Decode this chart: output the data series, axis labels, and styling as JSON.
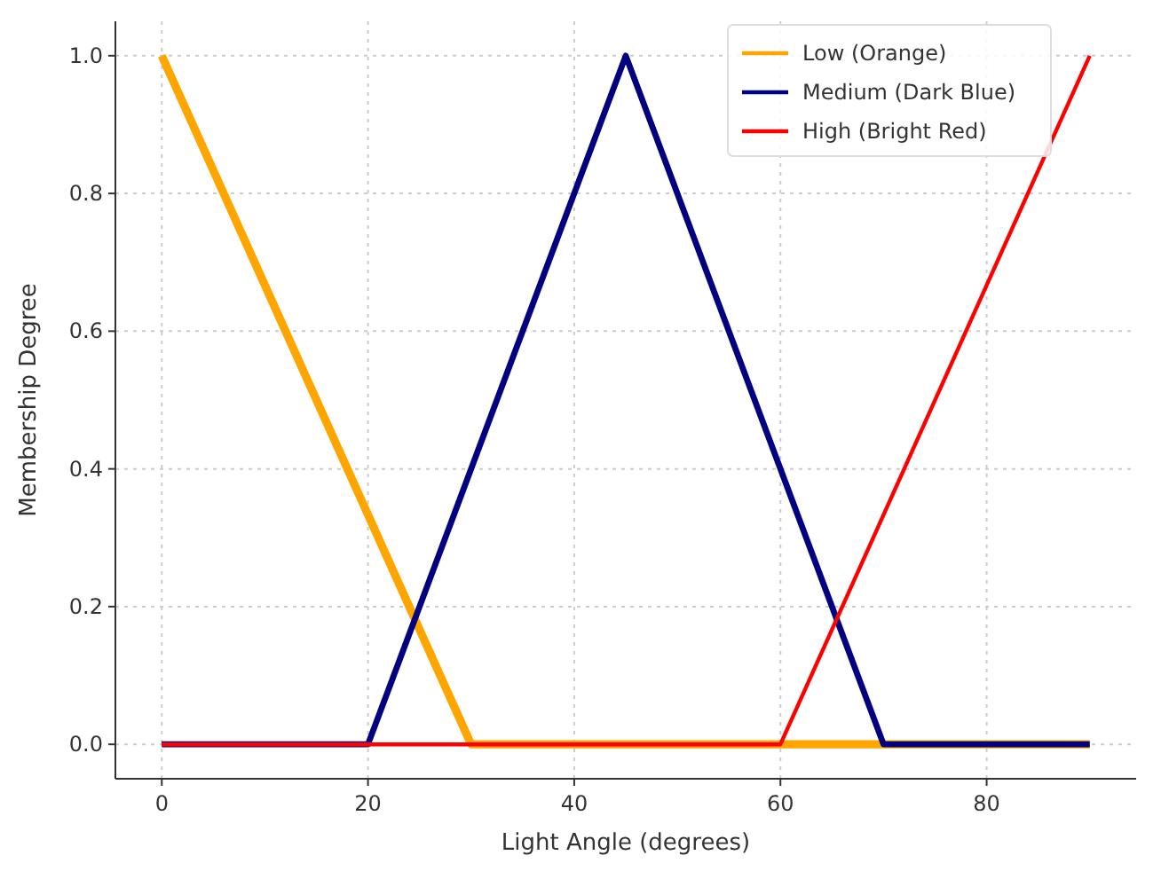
{
  "chart_data": {
    "type": "line",
    "xlabel": "Light Angle (degrees)",
    "ylabel": "Membership Degree",
    "series": [
      {
        "name": "Low (Orange)",
        "color": "#ffa500",
        "x": [
          0,
          30,
          90
        ],
        "values": [
          1,
          0,
          0
        ]
      },
      {
        "name": "Medium (Dark Blue)",
        "color": "#000080",
        "x": [
          0,
          20,
          45,
          70,
          90
        ],
        "values": [
          0,
          0,
          1,
          0,
          0
        ]
      },
      {
        "name": "High (Bright Red)",
        "color": "#ff0000",
        "x": [
          0,
          60,
          90
        ],
        "values": [
          0,
          0,
          1
        ]
      }
    ],
    "xlim": [
      -4.5,
      94.5
    ],
    "xticks": [
      0,
      20,
      40,
      60,
      80
    ],
    "ylim": [
      -0.05,
      1.05
    ],
    "yticks": [
      {
        "value": 0,
        "label": "0.0"
      },
      {
        "value": 0.2,
        "label": "0.2"
      },
      {
        "value": 0.4,
        "label": "0.4"
      },
      {
        "value": 0.6,
        "label": "0.6"
      },
      {
        "value": 0.8,
        "label": "0.8"
      },
      {
        "value": 1,
        "label": "1.0"
      }
    ],
    "grid": true,
    "legend": "top right",
    "marker": "none",
    "line_style": "solid"
  }
}
